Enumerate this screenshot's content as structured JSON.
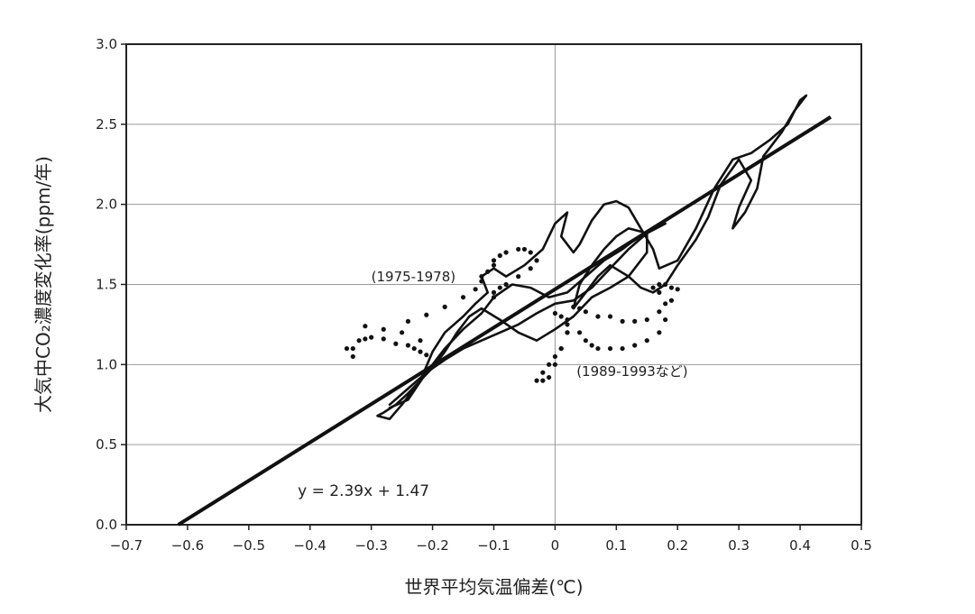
{
  "chart_data": {
    "type": "scatter",
    "xlabel": "世界平均気温偏差(℃)",
    "ylabel": "大気中CO₂濃度変化率(ppm/年)",
    "xlim": [
      -0.7,
      0.5
    ],
    "ylim": [
      0.0,
      3.0
    ],
    "x_ticks": [
      "−0.7",
      "−0.6",
      "−0.5",
      "−0.4",
      "−0.3",
      "−0.2",
      "−0.1",
      "0",
      "0.1",
      "0.2",
      "0.3",
      "0.4",
      "0.5"
    ],
    "y_ticks": [
      "0.0",
      "0.5",
      "1.0",
      "1.5",
      "2.0",
      "2.5",
      "3.0"
    ],
    "grid": true,
    "regression": {
      "slope": 2.39,
      "intercept": 1.47,
      "x_range": [
        -0.615,
        0.45
      ],
      "label": "y = 2.39x + 1.47"
    },
    "annotations": [
      {
        "text": "(1975-1978)",
        "x": -0.3,
        "y": 1.52
      },
      {
        "text": "(1989-1993など)",
        "x": 0.035,
        "y": 0.93
      }
    ],
    "series": [
      {
        "style": "line",
        "x": [
          -0.29,
          -0.27,
          -0.25,
          -0.22,
          -0.2,
          -0.18,
          -0.15,
          -0.13,
          -0.11,
          -0.12,
          -0.1,
          -0.08,
          -0.05,
          -0.02,
          0.0,
          0.02,
          0.01,
          0.03,
          0.04,
          0.06,
          0.08,
          0.1,
          0.12,
          0.14,
          0.16,
          0.17,
          0.2,
          0.23,
          0.26,
          0.29,
          0.32,
          0.35,
          0.38,
          0.4,
          0.41,
          0.39,
          0.37,
          0.34,
          0.33,
          0.31,
          0.29,
          0.3,
          0.32,
          0.3,
          0.27,
          0.25,
          0.23,
          0.2,
          0.18,
          0.16,
          0.14,
          0.12,
          0.09,
          0.07,
          0.05,
          0.03,
          0.04,
          0.06,
          0.08,
          0.1,
          0.12,
          0.15,
          0.15,
          0.12,
          0.09,
          0.06,
          0.03,
          0.0,
          -0.03,
          -0.06,
          -0.09,
          -0.12,
          -0.14,
          -0.16,
          -0.18,
          -0.2,
          -0.22,
          -0.24,
          -0.26,
          -0.28,
          -0.29
        ],
        "y": [
          0.68,
          0.66,
          0.75,
          0.9,
          1.08,
          1.2,
          1.3,
          1.38,
          1.45,
          1.55,
          1.6,
          1.55,
          1.62,
          1.72,
          1.88,
          1.95,
          1.8,
          1.7,
          1.75,
          1.9,
          2.0,
          2.02,
          1.98,
          1.85,
          1.72,
          1.6,
          1.65,
          1.85,
          2.1,
          2.28,
          2.32,
          2.4,
          2.5,
          2.65,
          2.68,
          2.58,
          2.45,
          2.3,
          2.1,
          1.95,
          1.85,
          1.98,
          2.15,
          2.28,
          2.12,
          1.92,
          1.78,
          1.62,
          1.5,
          1.45,
          1.48,
          1.55,
          1.62,
          1.55,
          1.45,
          1.35,
          1.5,
          1.62,
          1.72,
          1.8,
          1.85,
          1.82,
          1.7,
          1.55,
          1.48,
          1.42,
          1.3,
          1.22,
          1.15,
          1.2,
          1.28,
          1.35,
          1.3,
          1.2,
          1.08,
          0.98,
          0.9,
          0.82,
          0.75,
          0.7,
          0.68
        ]
      },
      {
        "style": "line",
        "x": [
          -0.27,
          -0.24,
          -0.21,
          -0.18,
          -0.15,
          -0.12,
          -0.1,
          -0.07,
          -0.04,
          -0.01,
          0.02,
          0.05,
          0.08,
          0.11,
          0.13,
          0.16,
          0.18,
          0.15,
          0.12,
          0.09,
          0.06,
          0.03,
          0.0,
          -0.03,
          -0.06,
          -0.09,
          -0.12,
          -0.15,
          -0.18,
          -0.21,
          -0.24,
          -0.27
        ],
        "y": [
          0.73,
          0.78,
          0.95,
          1.1,
          1.22,
          1.32,
          1.42,
          1.5,
          1.48,
          1.42,
          1.45,
          1.55,
          1.65,
          1.72,
          1.78,
          1.84,
          1.88,
          1.82,
          1.72,
          1.6,
          1.48,
          1.4,
          1.38,
          1.32,
          1.25,
          1.2,
          1.15,
          1.1,
          1.03,
          0.95,
          0.85,
          0.75
        ]
      },
      {
        "style": "dots",
        "x": [
          -0.34,
          -0.33,
          -0.33,
          -0.32,
          -0.31,
          -0.3,
          -0.28,
          -0.26,
          -0.24,
          -0.23,
          -0.22,
          -0.21,
          -0.22,
          -0.25,
          -0.28,
          -0.31,
          -0.24,
          -0.21,
          -0.18,
          -0.15,
          -0.13,
          -0.12,
          -0.12,
          -0.11,
          -0.1,
          -0.1,
          -0.09,
          -0.08,
          -0.06,
          -0.05,
          -0.04,
          -0.03,
          -0.04,
          -0.06,
          -0.08,
          -0.09,
          -0.1,
          -0.1
        ],
        "y": [
          1.1,
          1.05,
          1.1,
          1.15,
          1.16,
          1.17,
          1.16,
          1.13,
          1.12,
          1.1,
          1.08,
          1.06,
          1.15,
          1.2,
          1.22,
          1.24,
          1.27,
          1.31,
          1.36,
          1.42,
          1.47,
          1.52,
          1.55,
          1.58,
          1.62,
          1.65,
          1.68,
          1.7,
          1.72,
          1.72,
          1.7,
          1.65,
          1.6,
          1.55,
          1.5,
          1.48,
          1.45,
          1.42
        ]
      },
      {
        "style": "dots",
        "x": [
          -0.03,
          -0.02,
          -0.01,
          0.0,
          0.01,
          0.02,
          0.02,
          0.01,
          0.0,
          0.02,
          0.04,
          0.05,
          0.06,
          0.07,
          0.09,
          0.11,
          0.13,
          0.15,
          0.17,
          0.18,
          0.18,
          0.17,
          0.16,
          0.17,
          0.18,
          0.19,
          0.2,
          0.19,
          0.17,
          0.15,
          0.13,
          0.11,
          0.09,
          0.07,
          0.05,
          0.04,
          0.03,
          0.02,
          0.01,
          0.0,
          -0.01,
          -0.02
        ],
        "y": [
          0.9,
          0.95,
          1.0,
          1.05,
          1.1,
          1.2,
          1.28,
          1.3,
          1.32,
          1.25,
          1.2,
          1.15,
          1.12,
          1.1,
          1.1,
          1.1,
          1.12,
          1.15,
          1.2,
          1.28,
          1.38,
          1.45,
          1.48,
          1.5,
          1.5,
          1.48,
          1.47,
          1.4,
          1.33,
          1.28,
          1.27,
          1.27,
          1.3,
          1.3,
          1.33,
          1.35,
          1.36,
          1.2,
          1.1,
          1.0,
          0.92,
          0.9
        ]
      }
    ]
  }
}
